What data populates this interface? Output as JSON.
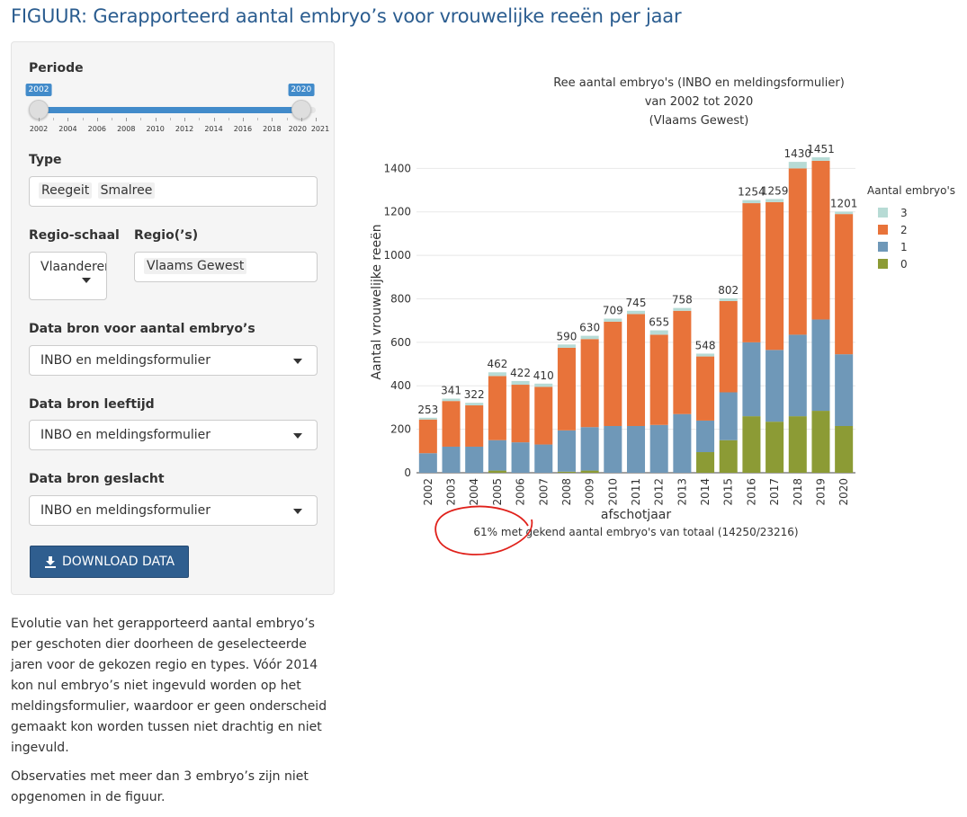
{
  "page": {
    "title": "FIGUUR: Gerapporteerd aantal embryo’s voor vrouwelijke reeën per jaar"
  },
  "sidebar": {
    "periode_label": "Periode",
    "slider": {
      "min": 2002,
      "max": 2021,
      "from": 2002,
      "to": 2020,
      "from_label": "2002",
      "to_label": "2020",
      "tick_labels": [
        "2002",
        "2004",
        "2006",
        "2008",
        "2010",
        "2012",
        "2014",
        "2016",
        "2018",
        "2020",
        "2021"
      ]
    },
    "type_label": "Type",
    "type_chips": [
      "Reegeit",
      "Smalree"
    ],
    "regio_schaal_label": "Regio-schaal",
    "regio_schaal_value": "Vlaanderen",
    "regios_label": "Regio(’s)",
    "regios_chip": "Vlaams Gewest",
    "bron_embryo_label": "Data bron voor aantal embryo’s",
    "bron_embryo_value": "INBO en meldingsformulier",
    "bron_leeftijd_label": "Data bron leeftijd",
    "bron_leeftijd_value": "INBO en meldingsformulier",
    "bron_geslacht_label": "Data bron geslacht",
    "bron_geslacht_value": "INBO en meldingsformulier",
    "download_label": "DOWNLOAD DATA"
  },
  "description": {
    "para1": "Evolutie van het gerapporteerd aantal embryo’s per geschoten dier doorheen de geselecteerde jaren voor de gekozen regio en types. Vóór 2014 kon nul embryo’s niet ingevuld worden op het meldingsformulier, waardoor er geen onderscheid gemaakt kon worden tussen niet drachtig en niet ingevuld.",
    "para2": "Observaties met meer dan 3 embryo’s zijn niet opgenomen in de figuur."
  },
  "colors": {
    "c0": "#8c9b35",
    "c1": "#6f98b8",
    "c2": "#e8733a",
    "c3": "#b7dbd5",
    "title_blue": "#2a5c8f",
    "button_blue": "#2f5e8f",
    "slider_blue": "#428bca",
    "annotation_red": "#e0211b"
  },
  "chart_data": {
    "type": "bar",
    "stacked": true,
    "title": "Ree aantal embryo's (INBO en meldingsformulier)",
    "subtitle_line2": "van 2002 tot 2020",
    "subtitle_line3": "(Vlaams Gewest)",
    "xlabel": "afschotjaar",
    "ylabel": "Aantal vrouwelijke reeën",
    "ylim": [
      0,
      1480
    ],
    "yticks": [
      0,
      200,
      400,
      600,
      800,
      1000,
      1200,
      1400
    ],
    "legend_title": "Aantal embryo's",
    "legend_position": "right",
    "footnote": "61% met gekend aantal embryo's van totaal (14250/23216)",
    "categories": [
      "2002",
      "2003",
      "2004",
      "2005",
      "2006",
      "2007",
      "2008",
      "2009",
      "2010",
      "2011",
      "2012",
      "2013",
      "2014",
      "2015",
      "2016",
      "2017",
      "2018",
      "2019",
      "2020"
    ],
    "totals": [
      253,
      341,
      322,
      462,
      422,
      410,
      590,
      630,
      709,
      745,
      655,
      758,
      548,
      802,
      1254,
      1259,
      1430,
      1451,
      1201
    ],
    "series": [
      {
        "name": "0",
        "color": "#8c9b35",
        "values": [
          0,
          0,
          0,
          10,
          0,
          0,
          5,
          10,
          0,
          0,
          0,
          0,
          95,
          150,
          260,
          235,
          260,
          285,
          215
        ]
      },
      {
        "name": "1",
        "color": "#6f98b8",
        "values": [
          90,
          120,
          120,
          140,
          140,
          130,
          190,
          200,
          215,
          215,
          220,
          270,
          145,
          220,
          340,
          330,
          375,
          420,
          330
        ]
      },
      {
        "name": "2",
        "color": "#e8733a",
        "values": [
          155,
          210,
          190,
          295,
          265,
          265,
          380,
          405,
          480,
          515,
          415,
          475,
          295,
          420,
          640,
          680,
          765,
          730,
          645
        ]
      },
      {
        "name": "3",
        "color": "#b7dbd5",
        "values": [
          8,
          11,
          12,
          17,
          17,
          15,
          15,
          15,
          14,
          15,
          20,
          13,
          13,
          12,
          14,
          14,
          30,
          16,
          11
        ]
      }
    ]
  }
}
